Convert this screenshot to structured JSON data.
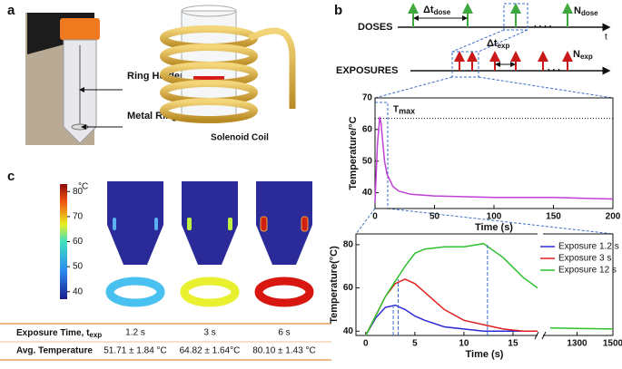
{
  "panel_labels": [
    "a",
    "b",
    "c"
  ],
  "photo": {
    "labels": [
      "Ring Holder",
      "Metal Ring"
    ],
    "coil_label": "Solenoid Coil"
  },
  "timeline": {
    "doses_label": "DOSES",
    "exposures_label": "EXPOSURES",
    "t_label": "t",
    "dt_dose": {
      "main": "Δt",
      "sub": "dose"
    },
    "n_dose": {
      "main": "N",
      "sub": "dose"
    },
    "dt_exp": {
      "main": "Δt",
      "sub": "exp"
    },
    "n_exp": {
      "main": "N",
      "sub": "exp"
    }
  },
  "chart_data": [
    {
      "type": "line",
      "y_label": "Temperature/°C",
      "x_label": "Time (s)",
      "x": [
        0,
        2,
        4,
        5,
        6,
        8,
        10,
        15,
        20,
        30,
        50,
        100,
        150,
        200
      ],
      "series": [
        {
          "color": "#c03fd8",
          "values": [
            37,
            55,
            64,
            62,
            58,
            50,
            46,
            42,
            40.5,
            39.5,
            39,
            38.5,
            38.5,
            38
          ]
        }
      ],
      "xlim": [
        0,
        200
      ],
      "xticks": [
        0,
        50,
        100,
        150,
        200
      ],
      "ylim": [
        35,
        70
      ],
      "yticks": [
        40,
        50,
        60,
        70
      ],
      "annotation": {
        "main": "T",
        "sub": "max",
        "value": 63.5
      }
    },
    {
      "type": "line",
      "y_label": "Temperature(°C)",
      "x_label": "Time (s)",
      "x": [
        0,
        1,
        2,
        3,
        4,
        5,
        6,
        8,
        10,
        12,
        14,
        16,
        17.5,
        1150,
        1500
      ],
      "series": [
        {
          "name": "Exposure 1.2 s",
          "color": "#2b2bd6",
          "values": [
            38,
            46,
            51,
            52,
            50,
            47,
            45,
            42,
            41,
            40,
            40,
            40,
            40,
            null,
            null
          ]
        },
        {
          "name": "Exposure 3 s",
          "color": "#e02020",
          "values": [
            38,
            47,
            56,
            62,
            64,
            62,
            58,
            50,
            45,
            43,
            41,
            40,
            40,
            null,
            null
          ]
        },
        {
          "name": "Exposure 12 s",
          "color": "#2fc02f",
          "values": [
            38,
            47,
            56,
            63,
            70,
            76,
            78,
            79,
            79,
            80.5,
            74,
            65,
            60,
            41.5,
            41
          ]
        }
      ],
      "markers": [
        2.8,
        3.3,
        12.4
      ],
      "xlim": [
        -1,
        1500
      ],
      "x_break": [
        17.5,
        1110
      ],
      "xticks": [
        0,
        5,
        10,
        15,
        1300,
        1500
      ],
      "ylim": [
        38,
        85
      ],
      "yticks": [
        40,
        60,
        80
      ],
      "legend": "upper right"
    }
  ],
  "colorbar": {
    "unit": "°C",
    "range": [
      37,
      83
    ],
    "ticks": [
      40,
      50,
      60,
      70,
      80
    ]
  },
  "table": {
    "time_label": {
      "main": "Exposure Time, t",
      "sub": "exp"
    },
    "times": [
      "1.2 s",
      "3 s",
      "6 s"
    ],
    "temp_label": "Avg. Temperature",
    "temps": [
      "51.71 ± 1.84 °C",
      "64.82 ± 1.64°C",
      "80.10 ± 1.43 °C"
    ]
  }
}
